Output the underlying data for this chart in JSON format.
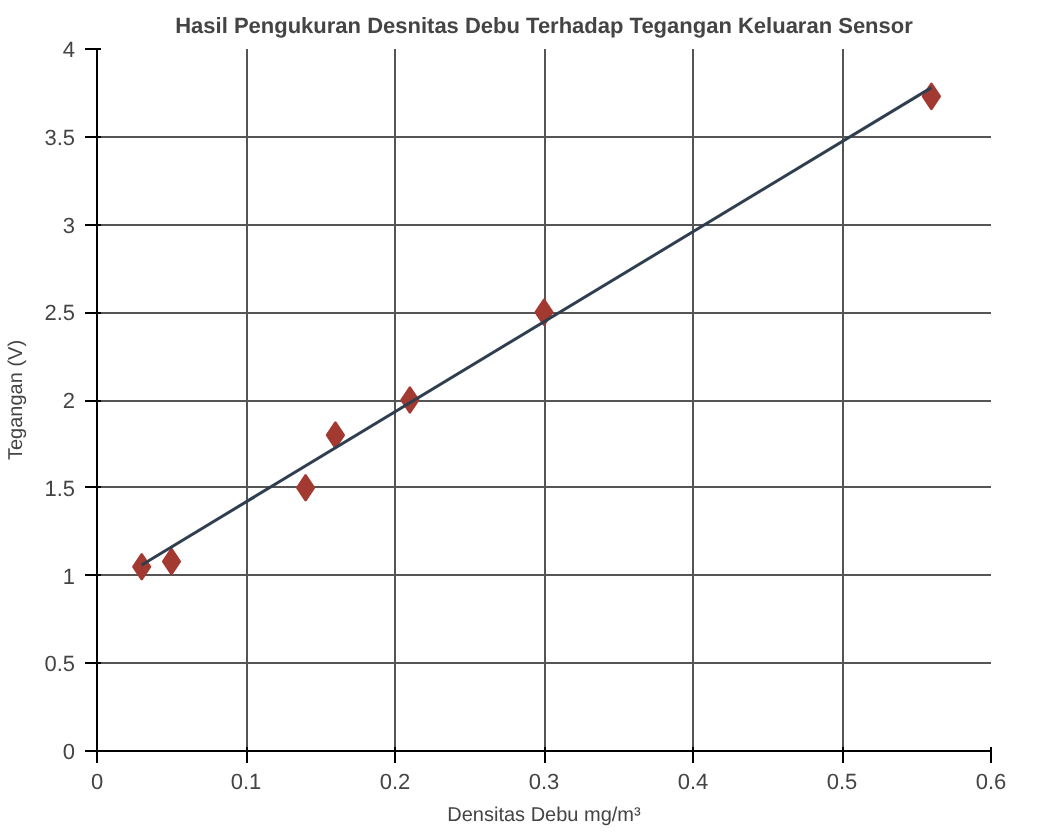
{
  "chart_data": {
    "type": "scatter",
    "title": "Hasil Pengukuran Desnitas Debu Terhadap Tegangan Keluaran Sensor",
    "xlabel": "Densitas Debu mg/m³",
    "ylabel": "Tegangan (V)",
    "xlim": [
      0,
      0.6
    ],
    "xticks": [
      0,
      0.1,
      0.2,
      0.3,
      0.4,
      0.5,
      0.6
    ],
    "ylim": [
      0,
      4
    ],
    "yticks": [
      0,
      0.5,
      1,
      1.5,
      2,
      2.5,
      3,
      3.5,
      4
    ],
    "grid": true,
    "series": [
      {
        "marker": "diamond",
        "color": "#a33a32",
        "x": [
          0.03,
          0.05,
          0.14,
          0.16,
          0.21,
          0.3,
          0.56
        ],
        "values": [
          1.05,
          1.08,
          1.5,
          1.8,
          2.0,
          2.5,
          3.73
        ]
      },
      {
        "type": "line",
        "marker": "none",
        "color": "#2e3e4e",
        "x": [
          0.03,
          0.56
        ],
        "values": [
          1.06,
          3.78
        ]
      }
    ]
  }
}
